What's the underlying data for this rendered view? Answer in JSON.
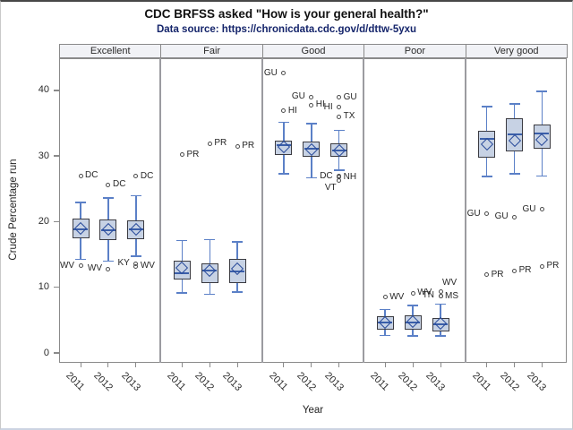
{
  "title": "CDC BRFSS asked \"How is your general health?\"",
  "subtitle": "Data source: https://chronicdata.cdc.gov/d/dttw-5yxu",
  "colors": {
    "box_fill": "#c7d2e4",
    "box_border": "#3b3b41",
    "whisker": "#5b80c7",
    "median": "#3a5ea9",
    "mean_diamond": "#2a4c9b",
    "outlier": "#4c4c4c",
    "header_fill": "#f1f2f6",
    "frame": "#8a8a8a",
    "separator": "#9b9ba0",
    "subtitle_color": "#15256b",
    "axis": "#8a8a8a"
  },
  "chart_data": {
    "type": "box",
    "title": "CDC BRFSS asked \"How is your general health?\"",
    "subtitle": "Data source: https://chronicdata.cdc.gov/d/dttw-5yxu",
    "xlabel": "Year",
    "ylabel": "Crude Percentage run",
    "y_ticks": [
      0,
      10,
      20,
      30,
      40
    ],
    "y_range": [
      -1.5,
      44.9
    ],
    "grid": "off",
    "legend": "none",
    "categories": [
      "2011",
      "2012",
      "2013"
    ],
    "panels": [
      {
        "label": "Excellent",
        "boxes": [
          {
            "year": "2011",
            "whisker_low": 14.3,
            "q1": 17.4,
            "median": 18.8,
            "mean": 19.0,
            "q3": 20.5,
            "whisker_high": 22.9,
            "outliers": [
              {
                "label": "DC",
                "value": 27.0,
                "side": "right"
              },
              {
                "label": "WV",
                "value": 13.3,
                "side": "left"
              }
            ]
          },
          {
            "year": "2012",
            "whisker_low": 14.0,
            "q1": 17.2,
            "median": 18.7,
            "mean": 18.8,
            "q3": 20.4,
            "whisker_high": 23.6,
            "outliers": [
              {
                "label": "DC",
                "value": 25.6,
                "side": "right"
              },
              {
                "label": "WV",
                "value": 12.8,
                "side": "left"
              }
            ]
          },
          {
            "year": "2013",
            "whisker_low": 14.8,
            "q1": 17.3,
            "median": 18.8,
            "mean": 18.8,
            "q3": 20.2,
            "whisker_high": 23.9,
            "outliers": [
              {
                "label": "DC",
                "value": 26.9,
                "side": "right"
              },
              {
                "label": "KY",
                "value": 13.6,
                "side": "left"
              },
              {
                "label": "WV",
                "value": 13.2,
                "side": "right"
              }
            ]
          }
        ]
      },
      {
        "label": "Fair",
        "boxes": [
          {
            "year": "2011",
            "whisker_low": 9.2,
            "q1": 11.2,
            "median": 12.2,
            "mean": 13.0,
            "q3": 14.0,
            "whisker_high": 17.1,
            "outliers": [
              {
                "label": "PR",
                "value": 30.2,
                "side": "right"
              }
            ]
          },
          {
            "year": "2012",
            "whisker_low": 9.0,
            "q1": 10.7,
            "median": 12.5,
            "mean": 12.5,
            "q3": 13.7,
            "whisker_high": 17.2,
            "outliers": [
              {
                "label": "PR",
                "value": 31.9,
                "side": "right"
              }
            ]
          },
          {
            "year": "2013",
            "whisker_low": 9.3,
            "q1": 10.6,
            "median": 12.4,
            "mean": 12.8,
            "q3": 14.3,
            "whisker_high": 16.9,
            "outliers": [
              {
                "label": "PR",
                "value": 31.5,
                "side": "right"
              }
            ]
          }
        ]
      },
      {
        "label": "Good",
        "boxes": [
          {
            "year": "2011",
            "whisker_low": 27.3,
            "q1": 30.1,
            "median": 31.6,
            "mean": 31.4,
            "q3": 32.4,
            "whisker_high": 35.1,
            "outliers": [
              {
                "label": "GU",
                "value": 42.6,
                "side": "left"
              },
              {
                "label": "HI",
                "value": 36.9,
                "side": "right"
              }
            ]
          },
          {
            "year": "2012",
            "whisker_low": 26.7,
            "q1": 29.9,
            "median": 31.1,
            "mean": 31.0,
            "q3": 32.2,
            "whisker_high": 34.9,
            "outliers": [
              {
                "label": "GU",
                "value": 39.0,
                "side": "left"
              },
              {
                "label": "HI",
                "value": 37.8,
                "side": "right"
              }
            ]
          },
          {
            "year": "2013",
            "whisker_low": 27.9,
            "q1": 29.9,
            "median": 30.9,
            "mean": 30.9,
            "q3": 31.9,
            "whisker_high": 33.9,
            "outliers": [
              {
                "label": "GU",
                "value": 38.9,
                "side": "right"
              },
              {
                "label": "HI",
                "value": 37.4,
                "side": "left"
              },
              {
                "label": "TX",
                "value": 36.0,
                "side": "right"
              },
              {
                "label": "DC",
                "value": 26.9,
                "side": "left"
              },
              {
                "label": "NH",
                "value": 26.8,
                "side": "right"
              },
              {
                "label": "VT",
                "value": 26.3,
                "side": "below"
              }
            ]
          }
        ]
      },
      {
        "label": "Poor",
        "boxes": [
          {
            "year": "2011",
            "whisker_low": 2.7,
            "q1": 3.6,
            "median": 4.6,
            "mean": 4.7,
            "q3": 5.6,
            "whisker_high": 6.6,
            "outliers": [
              {
                "label": "WV",
                "value": 8.5,
                "side": "right"
              }
            ]
          },
          {
            "year": "2012",
            "whisker_low": 2.6,
            "q1": 3.5,
            "median": 4.7,
            "mean": 4.8,
            "q3": 5.8,
            "whisker_high": 7.2,
            "outliers": [
              {
                "label": "WV",
                "value": 9.1,
                "side": "right"
              }
            ]
          },
          {
            "year": "2013",
            "whisker_low": 2.6,
            "q1": 3.3,
            "median": 4.4,
            "mean": 4.5,
            "q3": 5.3,
            "whisker_high": 7.4,
            "outliers": [
              {
                "label": "WV",
                "value": 9.3,
                "side": "above"
              },
              {
                "label": "TN",
                "value": 8.7,
                "side": "left"
              },
              {
                "label": "MS",
                "value": 8.6,
                "side": "right"
              }
            ]
          }
        ]
      },
      {
        "label": "Very good",
        "boxes": [
          {
            "year": "2011",
            "whisker_low": 26.9,
            "q1": 29.7,
            "median": 32.6,
            "mean": 31.8,
            "q3": 33.8,
            "whisker_high": 37.5,
            "outliers": [
              {
                "label": "GU",
                "value": 21.2,
                "side": "left"
              },
              {
                "label": "PR",
                "value": 11.9,
                "side": "right"
              }
            ]
          },
          {
            "year": "2012",
            "whisker_low": 27.3,
            "q1": 30.7,
            "median": 33.3,
            "mean": 32.3,
            "q3": 35.8,
            "whisker_high": 37.9,
            "outliers": [
              {
                "label": "GU",
                "value": 20.7,
                "side": "left"
              },
              {
                "label": "PR",
                "value": 12.5,
                "side": "right"
              }
            ]
          },
          {
            "year": "2013",
            "whisker_low": 27.0,
            "q1": 31.1,
            "median": 33.5,
            "mean": 32.5,
            "q3": 34.8,
            "whisker_high": 39.8,
            "outliers": [
              {
                "label": "GU",
                "value": 21.9,
                "side": "left"
              },
              {
                "label": "PR",
                "value": 13.2,
                "side": "right"
              }
            ]
          }
        ]
      }
    ]
  }
}
